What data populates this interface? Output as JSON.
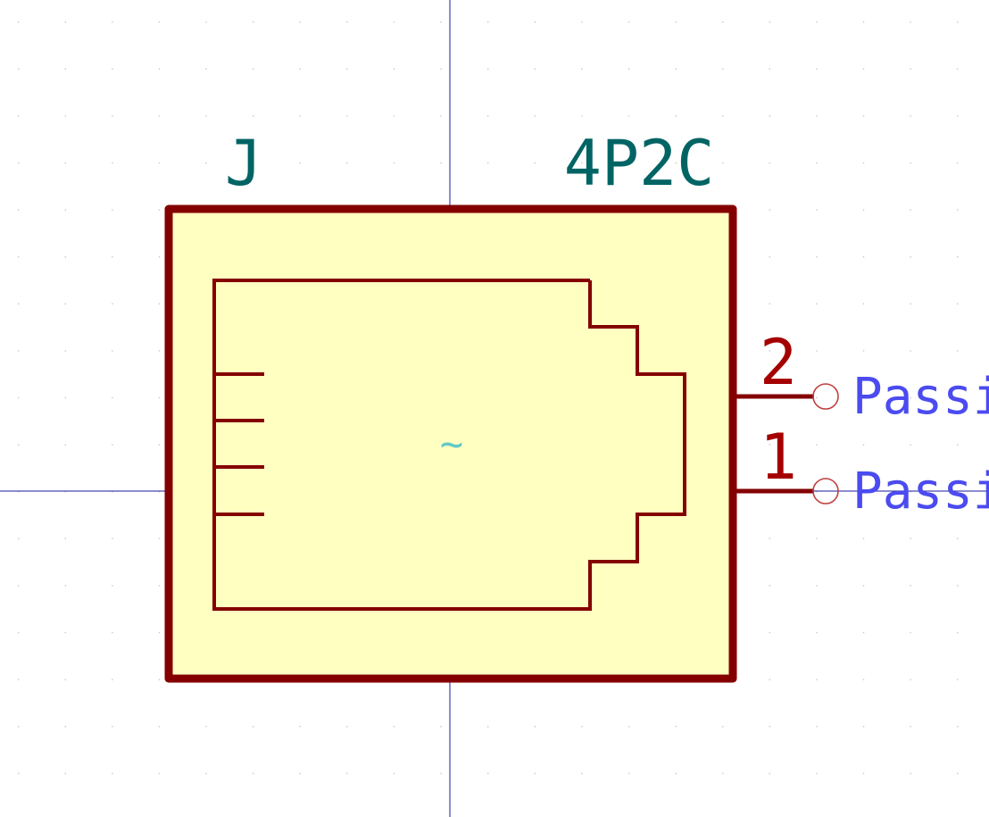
{
  "symbol": {
    "reference": "J",
    "value": "4P2C",
    "type_mark": "~",
    "pins": [
      {
        "number": "2",
        "type_label": "Passi"
      },
      {
        "number": "1",
        "type_label": "Passi"
      }
    ]
  },
  "colors": {
    "background": "#ffffff",
    "grid_dot": "#c8c8c8",
    "axis": "#1a1aa0",
    "body_outline": "#840000",
    "body_fill": "#ffffc2",
    "field_text": "#006464",
    "pin": "#840000",
    "pin_number": "#a50000",
    "pin_type": "#4b4bf0",
    "type_mark": "#64c8c8"
  }
}
